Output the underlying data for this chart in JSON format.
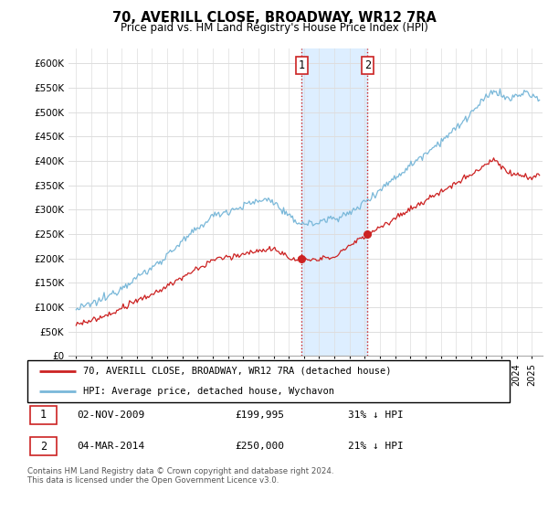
{
  "title": "70, AVERILL CLOSE, BROADWAY, WR12 7RA",
  "subtitle": "Price paid vs. HM Land Registry's House Price Index (HPI)",
  "ylabel_ticks": [
    "£0",
    "£50K",
    "£100K",
    "£150K",
    "£200K",
    "£250K",
    "£300K",
    "£350K",
    "£400K",
    "£450K",
    "£500K",
    "£550K",
    "£600K"
  ],
  "ytick_values": [
    0,
    50000,
    100000,
    150000,
    200000,
    250000,
    300000,
    350000,
    400000,
    450000,
    500000,
    550000,
    600000
  ],
  "ylim": [
    0,
    630000
  ],
  "xlim_start": 1994.5,
  "xlim_end": 2025.7,
  "transaction1_x": 2009.84,
  "transaction1_y": 199995,
  "transaction2_x": 2014.17,
  "transaction2_y": 250000,
  "legend_line1": "70, AVERILL CLOSE, BROADWAY, WR12 7RA (detached house)",
  "legend_line2": "HPI: Average price, detached house, Wychavon",
  "table_row1": [
    "1",
    "02-NOV-2009",
    "£199,995",
    "31% ↓ HPI"
  ],
  "table_row2": [
    "2",
    "04-MAR-2014",
    "£250,000",
    "21% ↓ HPI"
  ],
  "footer": "Contains HM Land Registry data © Crown copyright and database right 2024.\nThis data is licensed under the Open Government Licence v3.0.",
  "hpi_color": "#7ab8d9",
  "price_color": "#cc2222",
  "highlight_color": "#ddeeff",
  "vline_color": "#cc2222",
  "dot_color": "#cc2222",
  "grid_color": "#dddddd"
}
